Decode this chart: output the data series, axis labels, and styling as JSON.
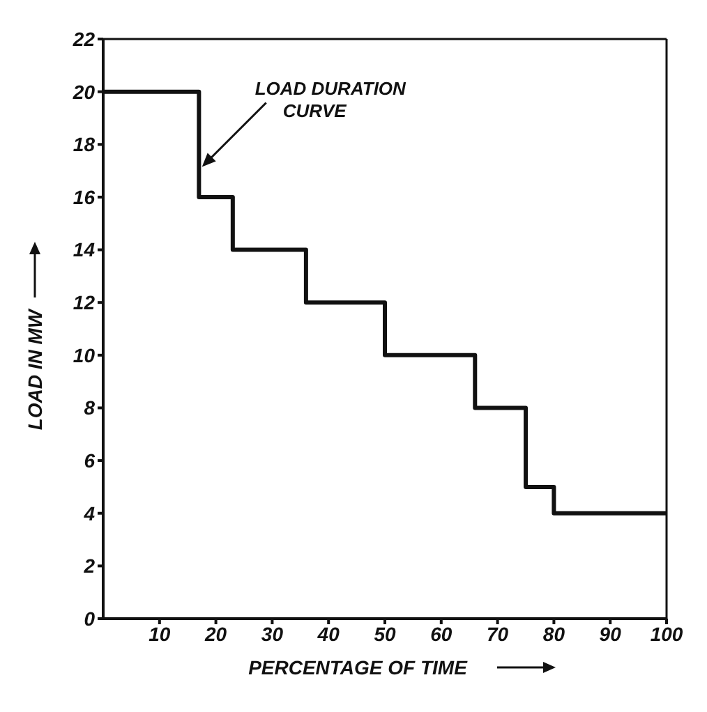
{
  "chart_data": {
    "type": "step",
    "xlabel": "PERCENTAGE OF TIME",
    "ylabel": "LOAD IN MW",
    "x": [
      0,
      17,
      23,
      36,
      50,
      66,
      75,
      80,
      100
    ],
    "values": [
      20,
      16,
      14,
      12,
      10,
      8,
      5,
      4,
      4
    ],
    "color": "#111111",
    "xlim": [
      0,
      100
    ],
    "xticks": [
      10,
      20,
      30,
      40,
      50,
      60,
      70,
      80,
      90,
      100
    ],
    "ylim": [
      0,
      22
    ],
    "yticks": [
      0,
      2,
      4,
      6,
      8,
      10,
      12,
      14,
      16,
      18,
      20,
      22
    ],
    "grid": false,
    "marker": "none",
    "line_style": "solid",
    "annotations": [
      {
        "text": "LOAD DURATION CURVE",
        "x": 17,
        "y": 17
      }
    ]
  }
}
